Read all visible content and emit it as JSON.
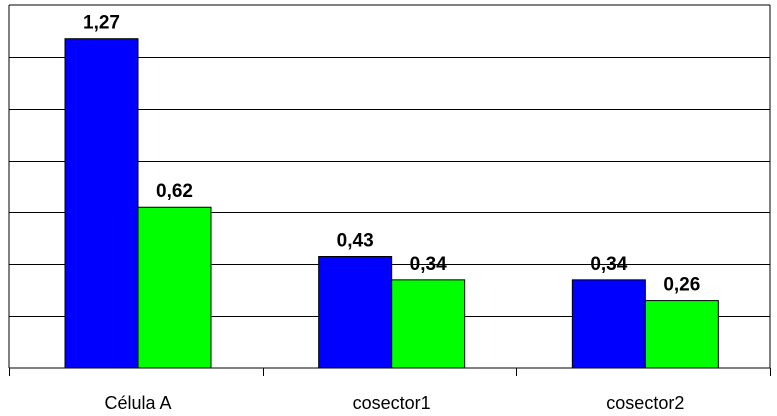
{
  "chart_data": {
    "type": "bar",
    "categories": [
      "Célula A",
      "cosector1",
      "cosector2"
    ],
    "series": [
      {
        "values": [
          1.27,
          0.43,
          0.34
        ],
        "labels": [
          "1,27",
          "0,43",
          "0,34"
        ],
        "color": "#0000ff"
      },
      {
        "values": [
          0.62,
          0.34,
          0.26
        ],
        "labels": [
          "0,62",
          "0,34",
          "0,26"
        ],
        "color": "#00ff00"
      }
    ],
    "title": "",
    "xlabel": "",
    "ylabel": "",
    "ylim": [
      0,
      1.4
    ],
    "y_gridline_step": 0.2,
    "grid": true,
    "legend": "none"
  }
}
